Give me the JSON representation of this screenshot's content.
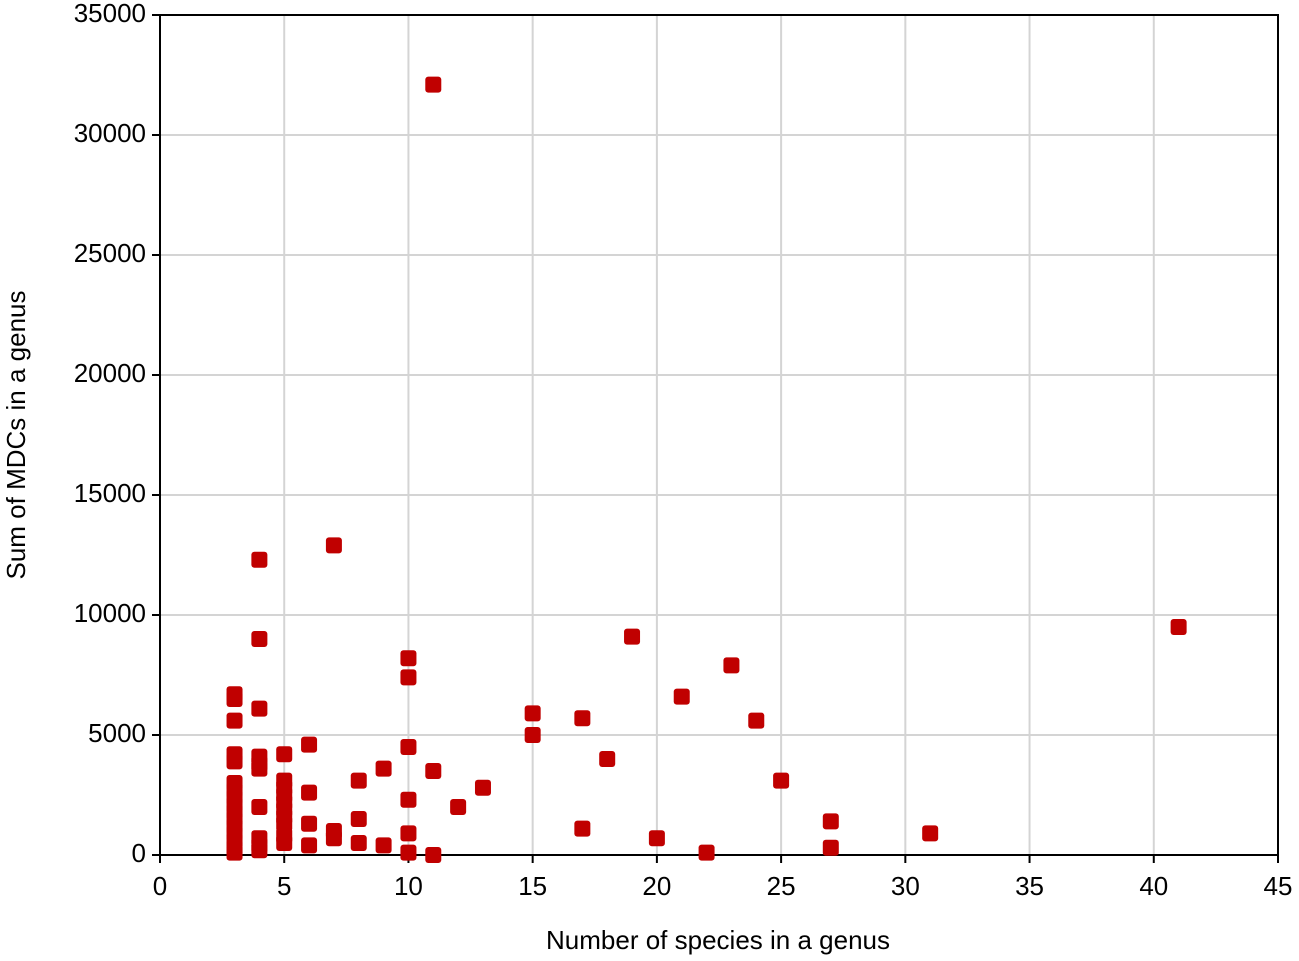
{
  "chart_data": {
    "type": "scatter",
    "x_label": "Number of species in a genus",
    "y_label": "Sum of MDCs in a genus",
    "xlim": [
      0,
      45
    ],
    "xticks": [
      0,
      5,
      10,
      15,
      20,
      25,
      30,
      35,
      40,
      45
    ],
    "ylim": [
      0,
      35000
    ],
    "yticks": [
      0,
      5000,
      10000,
      15000,
      20000,
      25000,
      30000,
      35000
    ],
    "grid": true,
    "series": [
      {
        "color": "#c00000",
        "x": [
          3,
          3,
          3,
          3,
          3,
          3,
          3,
          3,
          3,
          3,
          3,
          3,
          3,
          3,
          3,
          3,
          4,
          4,
          4,
          4,
          4,
          4,
          4,
          4,
          4,
          4,
          5,
          5,
          5,
          5,
          5,
          5,
          5,
          5,
          5,
          5,
          6,
          6,
          6,
          6,
          7,
          7,
          7,
          8,
          8,
          8,
          9,
          9,
          10,
          10,
          10,
          10,
          10,
          10,
          11,
          11,
          11,
          12,
          13,
          15,
          15,
          17,
          17,
          18,
          19,
          20,
          21,
          22,
          23,
          24,
          25,
          27,
          27,
          31,
          41
        ],
        "y": [
          6700,
          6500,
          5600,
          4200,
          3900,
          3000,
          2700,
          2400,
          2100,
          1800,
          1500,
          1200,
          900,
          600,
          300,
          100,
          12300,
          9000,
          6100,
          4100,
          3800,
          3600,
          2000,
          700,
          400,
          200,
          4200,
          3100,
          2800,
          2500,
          2200,
          1900,
          1600,
          1300,
          800,
          500,
          4600,
          2600,
          1300,
          400,
          12900,
          1000,
          700,
          3100,
          1500,
          500,
          3600,
          400,
          8200,
          7400,
          4500,
          2300,
          900,
          100,
          32100,
          3500,
          0,
          2000,
          2800,
          5900,
          5000,
          5700,
          1100,
          4000,
          9100,
          700,
          6600,
          100,
          7900,
          5600,
          3100,
          1400,
          300,
          900,
          9500
        ]
      }
    ]
  }
}
